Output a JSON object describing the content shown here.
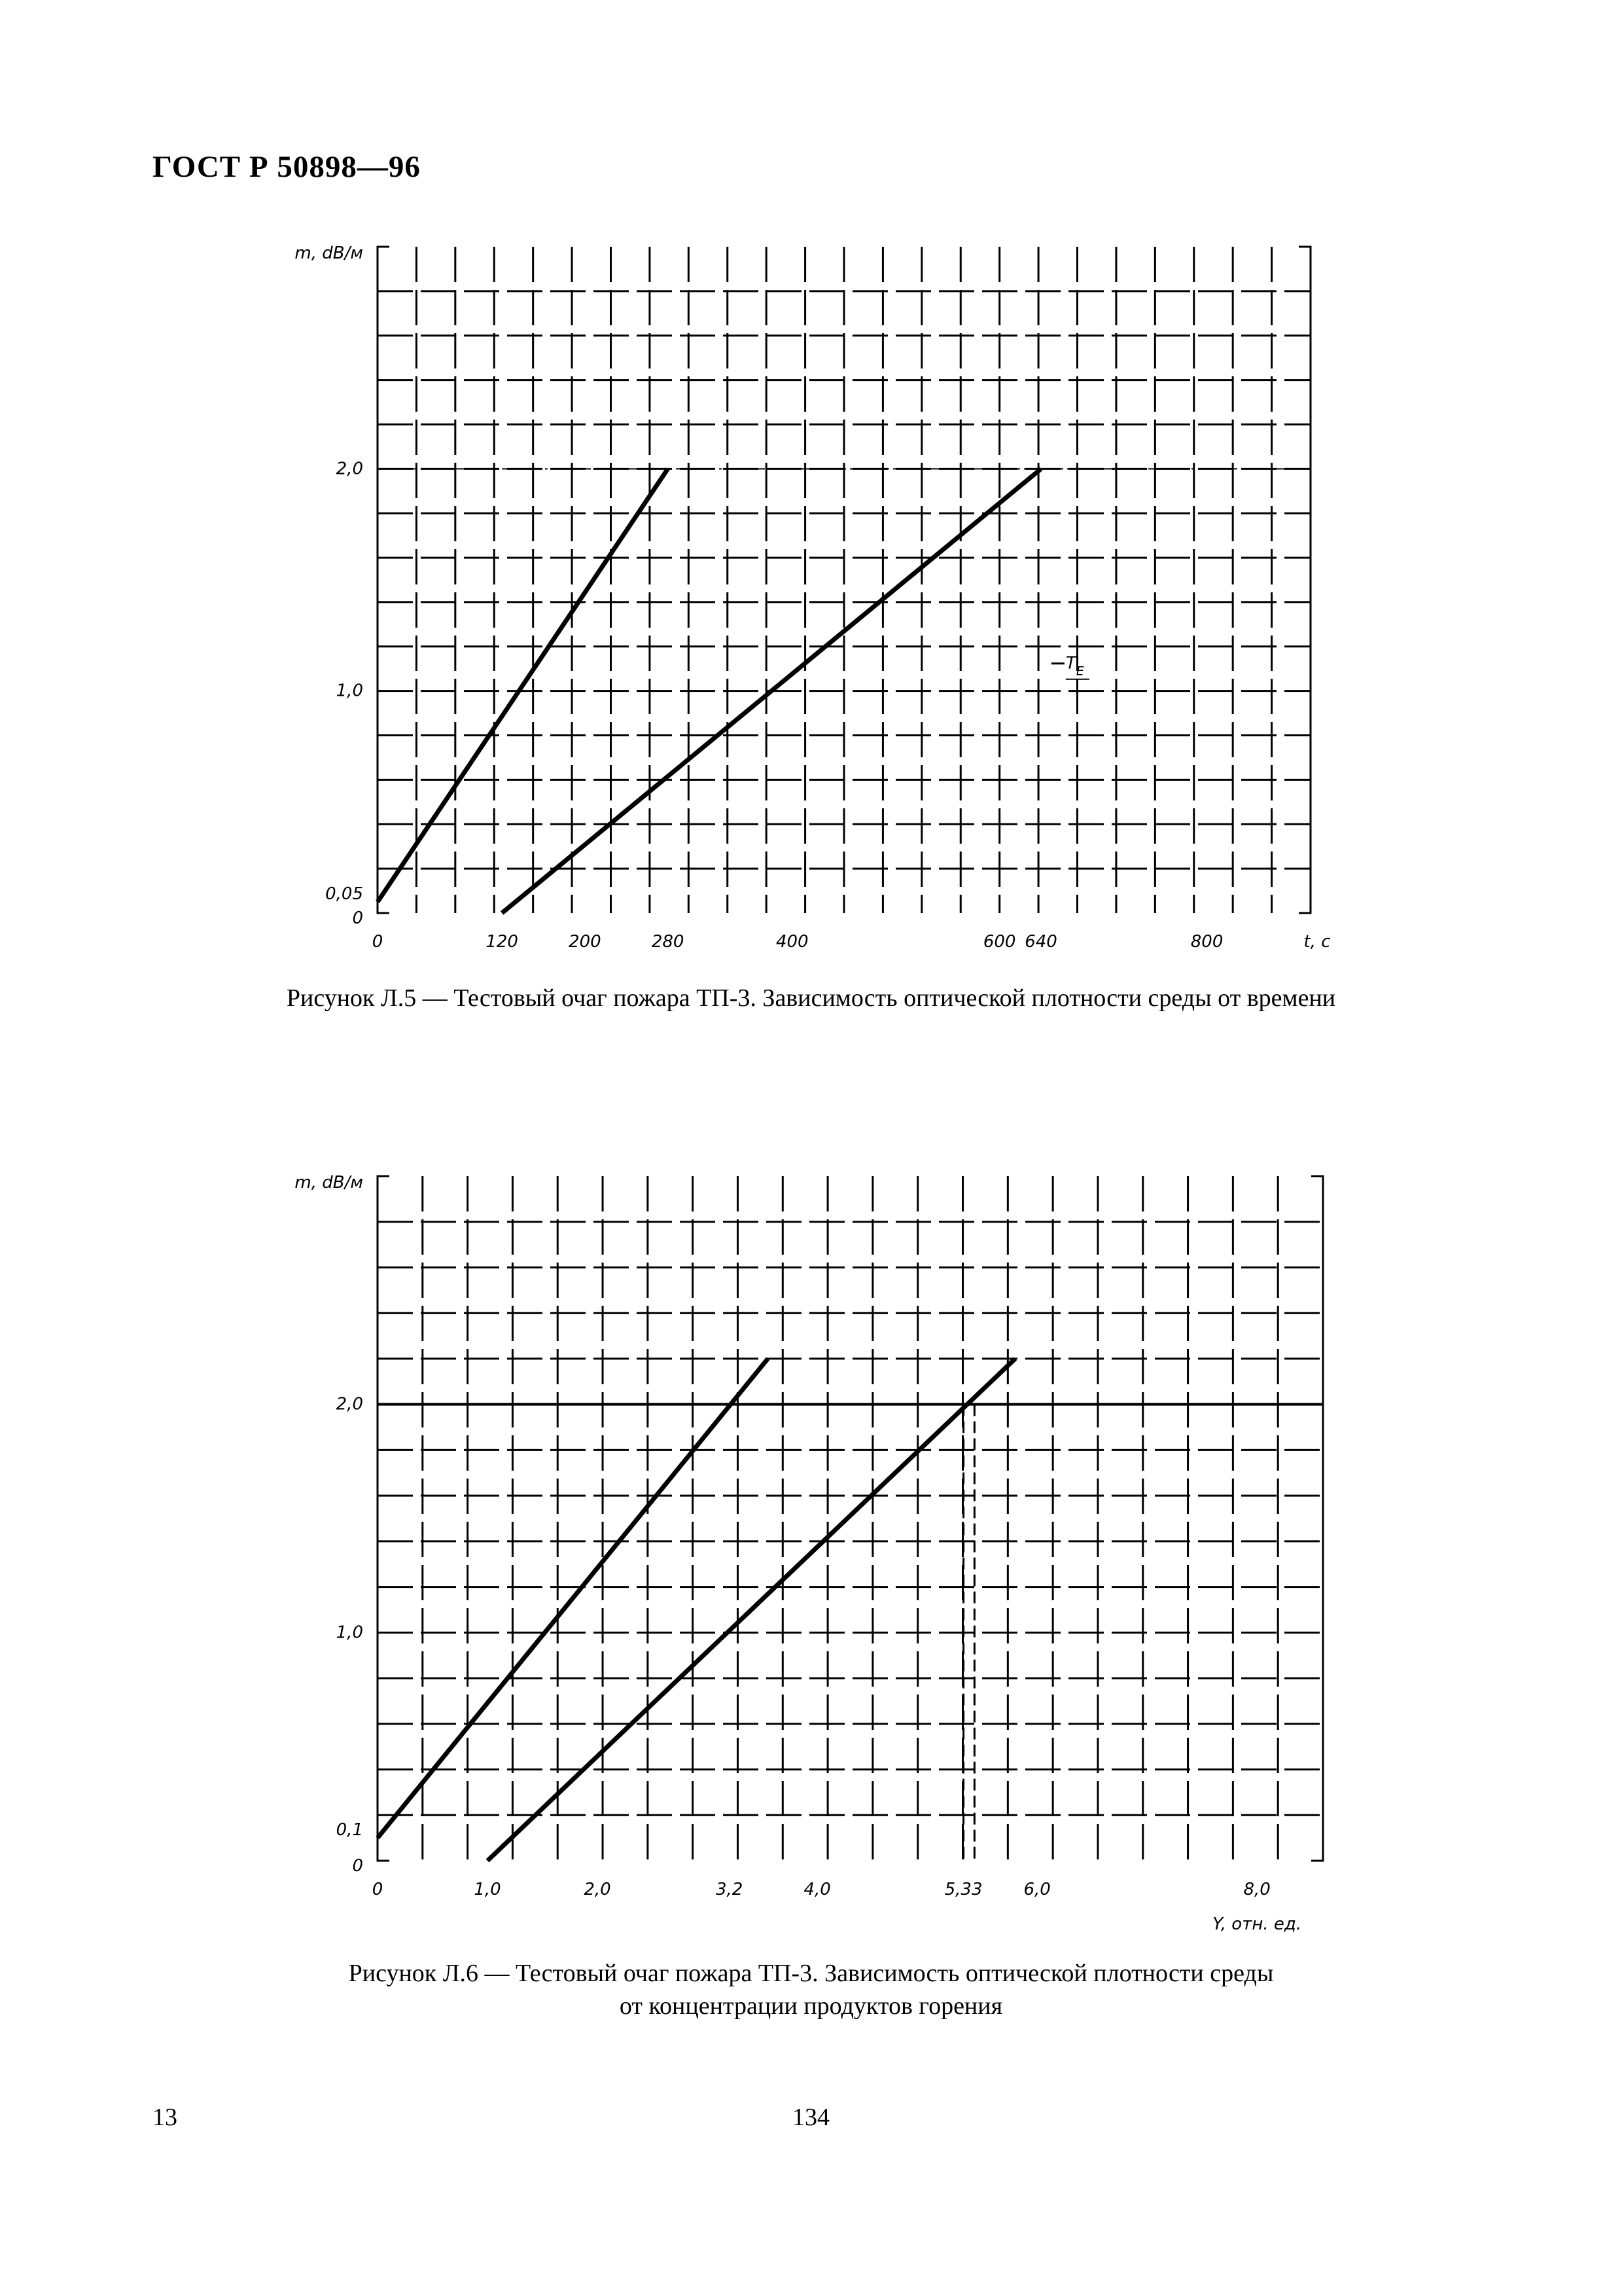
{
  "header": {
    "doc_id": "ГОСТ Р 50898—96"
  },
  "chart_data": [
    {
      "type": "line",
      "ylabel": "m, dB/м",
      "xlabel": "t, c",
      "xlim": [
        0,
        900
      ],
      "ylim": [
        0,
        3.0
      ],
      "x_ticks": [
        "0",
        "120",
        "200",
        "280",
        "400",
        "600",
        "640",
        "800"
      ],
      "x_tick_values": [
        0,
        120,
        200,
        280,
        400,
        600,
        640,
        800
      ],
      "y_ticks": [
        "0",
        "0,05",
        "1,0",
        "2,0"
      ],
      "y_tick_values": [
        0,
        0.05,
        1.0,
        2.0
      ],
      "series": [
        {
          "x": [
            0,
            280
          ],
          "y": [
            0.05,
            2.0
          ]
        },
        {
          "x": [
            120,
            640
          ],
          "y": [
            0.0,
            2.0
          ]
        }
      ],
      "reference_line_y": 2.0,
      "annotation": "T",
      "annotation_sub": "E",
      "annotation_pos": [
        650,
        1.1
      ]
    },
    {
      "type": "line",
      "ylabel": "m, dB/м",
      "xlabel": "Y, отн. ед.",
      "xlim": [
        0,
        8.6
      ],
      "ylim": [
        0,
        3.0
      ],
      "x_ticks": [
        "0",
        "1,0",
        "2,0",
        "3,2",
        "4,0",
        "5,33",
        "6,0",
        "8,0"
      ],
      "x_tick_values": [
        0,
        1.0,
        2.0,
        3.2,
        4.0,
        5.33,
        6.0,
        8.0
      ],
      "y_ticks": [
        "0",
        "0,1",
        "1,0",
        "2,0"
      ],
      "y_tick_values": [
        0,
        0.1,
        1.0,
        2.0
      ],
      "series": [
        {
          "x": [
            0,
            3.55
          ],
          "y": [
            0.1,
            2.2
          ]
        },
        {
          "x": [
            1.0,
            5.8
          ],
          "y": [
            0.0,
            2.2
          ]
        }
      ],
      "reference_line_y": 2.0,
      "dashed_vertical_x": [
        5.33,
        5.43
      ]
    }
  ],
  "captions": {
    "fig1": "Рисунок Л.5 — Тестовый очаг пожара ТП-3. Зависимость оптической плотности среды от времени",
    "fig2_line1": "Рисунок Л.6 — Тестовый очаг пожара ТП-3. Зависимость оптической плотности среды",
    "fig2_line2": "от концентрации продуктов горения"
  },
  "footer": {
    "left": "13",
    "center": "134"
  }
}
